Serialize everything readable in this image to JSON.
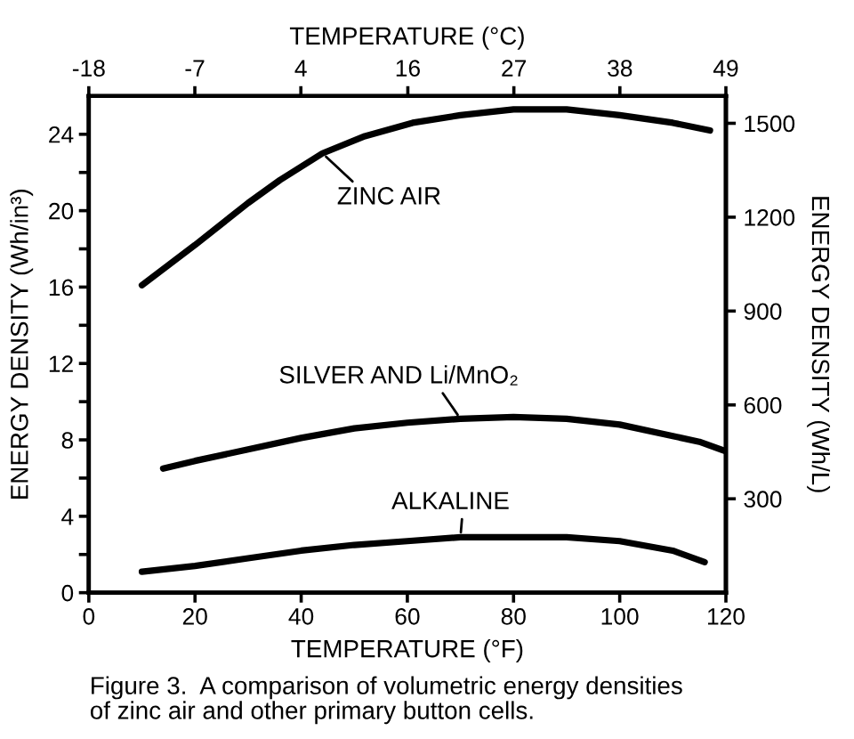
{
  "chart_data": {
    "type": "line",
    "xlabel": "TEMPERATURE (°F)",
    "x2label": "TEMPERATURE (°C)",
    "ylabel": "ENERGY DENSITY (Wh/in³)",
    "y2label": "ENERGY DENSITY (Wh/L)",
    "annotations": [
      "Figure 3.  A comparison of volumetric energy densities\nof zinc air and other primary button cells."
    ],
    "xlim": [
      0,
      120
    ],
    "xticks": [
      0,
      20,
      40,
      60,
      80,
      100,
      120
    ],
    "x2lim": [
      -17.8,
      48.9
    ],
    "x2ticks": [
      {
        "value": -17.8,
        "label": "-18"
      },
      {
        "value": -6.7,
        "label": "-7"
      },
      {
        "value": 4.4,
        "label": "4"
      },
      {
        "value": 15.6,
        "label": "16"
      },
      {
        "value": 26.7,
        "label": "27"
      },
      {
        "value": 37.8,
        "label": "38"
      },
      {
        "value": 48.9,
        "label": "49"
      }
    ],
    "ylim": [
      0,
      26
    ],
    "yticks": [
      0,
      {
        "value": 2,
        "label": null
      },
      4,
      {
        "value": 6,
        "label": null
      },
      8,
      {
        "value": 10,
        "label": null
      },
      12,
      {
        "value": 14,
        "label": null
      },
      16,
      {
        "value": 18,
        "label": null
      },
      20,
      {
        "value": 22,
        "label": null
      },
      24
    ],
    "y2lim": [
      0,
      1587
    ],
    "y2ticks": [
      300,
      600,
      900,
      1200,
      1500
    ],
    "series": [
      {
        "name": "ZINC AIR",
        "color": "#000000",
        "x": [
          10,
          20,
          30,
          36,
          44,
          52,
          61,
          70,
          80,
          90,
          100,
          110,
          117
        ],
        "values": [
          16.1,
          18.2,
          20.4,
          21.6,
          23.0,
          23.9,
          24.6,
          25.0,
          25.3,
          25.3,
          25.0,
          24.6,
          24.2
        ]
      },
      {
        "name": "SILVER AND Li/MnO₂",
        "color": "#000000",
        "x": [
          14,
          20,
          30,
          40,
          50,
          60,
          70,
          80,
          90,
          100,
          110,
          115,
          120
        ],
        "values": [
          6.5,
          6.9,
          7.5,
          8.1,
          8.6,
          8.9,
          9.1,
          9.2,
          9.1,
          8.8,
          8.2,
          7.9,
          7.4
        ]
      },
      {
        "name": "ALKALINE",
        "color": "#000000",
        "x": [
          10,
          20,
          30,
          40,
          50,
          60,
          70,
          80,
          90,
          100,
          110,
          116
        ],
        "values": [
          1.1,
          1.4,
          1.8,
          2.2,
          2.5,
          2.7,
          2.9,
          2.9,
          2.9,
          2.7,
          2.2,
          1.6
        ]
      }
    ]
  }
}
